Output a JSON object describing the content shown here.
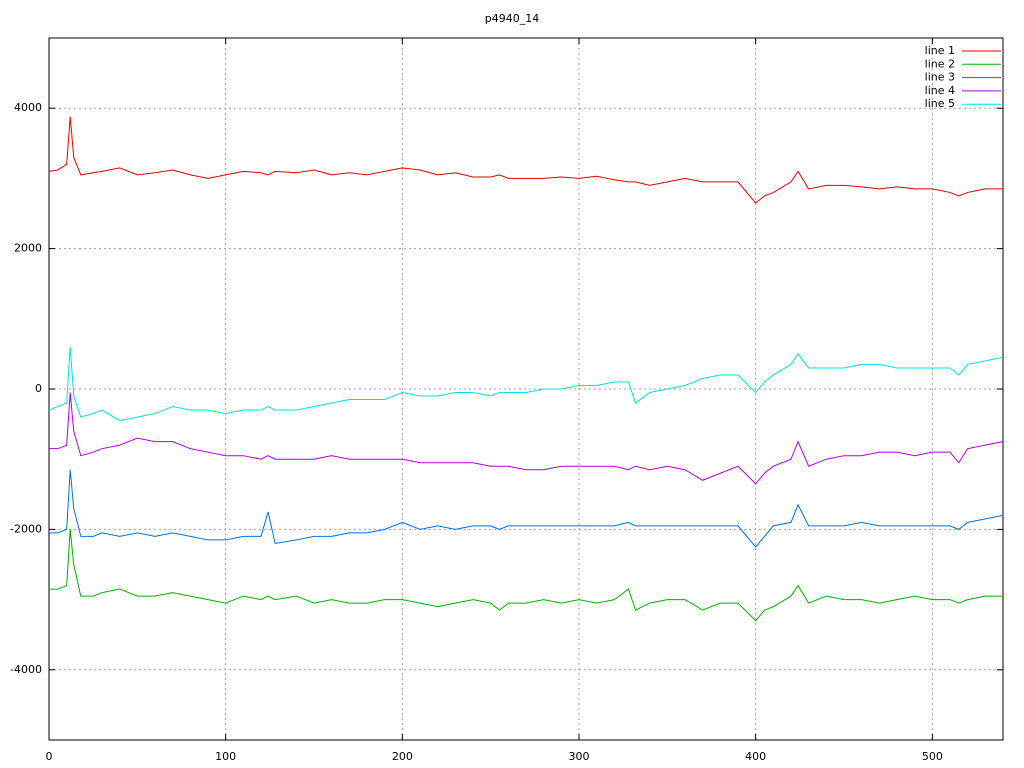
{
  "chart_data": {
    "type": "line",
    "title": "p4940_14",
    "x": [
      0,
      5,
      10,
      12,
      14,
      18,
      25,
      30,
      40,
      50,
      60,
      70,
      80,
      90,
      100,
      110,
      120,
      124,
      128,
      140,
      150,
      160,
      170,
      180,
      190,
      200,
      210,
      220,
      230,
      240,
      250,
      255,
      260,
      270,
      280,
      290,
      300,
      310,
      320,
      328,
      332,
      340,
      350,
      360,
      370,
      380,
      390,
      400,
      405,
      410,
      420,
      424,
      430,
      440,
      450,
      460,
      470,
      480,
      490,
      500,
      510,
      515,
      520,
      530,
      540
    ],
    "series": [
      {
        "name": "line 1",
        "color": "#e00000",
        "values": [
          3100,
          3120,
          3200,
          3880,
          3300,
          3050,
          3080,
          3100,
          3150,
          3050,
          3080,
          3120,
          3050,
          3000,
          3050,
          3100,
          3080,
          3050,
          3100,
          3080,
          3120,
          3050,
          3080,
          3050,
          3100,
          3150,
          3120,
          3050,
          3080,
          3020,
          3020,
          3050,
          3000,
          3000,
          3000,
          3020,
          3000,
          3030,
          2980,
          2950,
          2950,
          2900,
          2950,
          3000,
          2950,
          2950,
          2950,
          2650,
          2750,
          2800,
          2950,
          3100,
          2850,
          2900,
          2900,
          2880,
          2850,
          2880,
          2850,
          2850,
          2800,
          2750,
          2800,
          2850,
          2850
        ]
      },
      {
        "name": "line 2",
        "color": "#00b000",
        "values": [
          -2850,
          -2850,
          -2800,
          -2000,
          -2500,
          -2950,
          -2950,
          -2900,
          -2850,
          -2950,
          -2950,
          -2900,
          -2950,
          -3000,
          -3050,
          -2950,
          -3000,
          -2950,
          -3000,
          -2950,
          -3050,
          -3000,
          -3050,
          -3050,
          -3000,
          -3000,
          -3050,
          -3100,
          -3050,
          -3000,
          -3050,
          -3150,
          -3050,
          -3050,
          -3000,
          -3050,
          -3000,
          -3050,
          -3000,
          -2850,
          -3150,
          -3050,
          -3000,
          -3000,
          -3150,
          -3050,
          -3050,
          -3300,
          -3150,
          -3100,
          -2950,
          -2800,
          -3050,
          -2950,
          -3000,
          -3000,
          -3050,
          -3000,
          -2950,
          -3000,
          -3000,
          -3050,
          -3000,
          -2950,
          -2950
        ]
      },
      {
        "name": "line 3",
        "color": "#0070e0",
        "values": [
          -2050,
          -2050,
          -2000,
          -1150,
          -1700,
          -2100,
          -2100,
          -2050,
          -2100,
          -2050,
          -2100,
          -2050,
          -2100,
          -2150,
          -2150,
          -2100,
          -2100,
          -1750,
          -2200,
          -2150,
          -2100,
          -2100,
          -2050,
          -2050,
          -2000,
          -1900,
          -2000,
          -1950,
          -2000,
          -1950,
          -1950,
          -2000,
          -1950,
          -1950,
          -1950,
          -1950,
          -1950,
          -1950,
          -1950,
          -1900,
          -1950,
          -1950,
          -1950,
          -1950,
          -1950,
          -1950,
          -1950,
          -2250,
          -2100,
          -1950,
          -1900,
          -1650,
          -1950,
          -1950,
          -1950,
          -1900,
          -1950,
          -1950,
          -1950,
          -1950,
          -1950,
          -2000,
          -1900,
          -1850,
          -1800
        ]
      },
      {
        "name": "line 4",
        "color": "#b000e0",
        "values": [
          -850,
          -850,
          -800,
          -50,
          -600,
          -950,
          -900,
          -850,
          -800,
          -700,
          -750,
          -750,
          -850,
          -900,
          -950,
          -950,
          -1000,
          -950,
          -1000,
          -1000,
          -1000,
          -950,
          -1000,
          -1000,
          -1000,
          -1000,
          -1050,
          -1050,
          -1050,
          -1050,
          -1100,
          -1100,
          -1100,
          -1150,
          -1150,
          -1100,
          -1100,
          -1100,
          -1100,
          -1150,
          -1100,
          -1150,
          -1100,
          -1150,
          -1300,
          -1200,
          -1100,
          -1350,
          -1200,
          -1100,
          -1000,
          -750,
          -1100,
          -1000,
          -950,
          -950,
          -900,
          -900,
          -950,
          -900,
          -900,
          -1050,
          -850,
          -800,
          -750
        ]
      },
      {
        "name": "line 5",
        "color": "#00e0e0",
        "values": [
          -300,
          -250,
          -200,
          600,
          -100,
          -400,
          -350,
          -300,
          -450,
          -400,
          -350,
          -250,
          -300,
          -300,
          -350,
          -300,
          -300,
          -250,
          -300,
          -300,
          -250,
          -200,
          -150,
          -150,
          -150,
          -50,
          -100,
          -100,
          -50,
          -50,
          -100,
          -50,
          -50,
          -50,
          0,
          0,
          50,
          50,
          100,
          100,
          -200,
          -50,
          0,
          50,
          150,
          200,
          200,
          -50,
          100,
          200,
          350,
          500,
          300,
          300,
          300,
          350,
          350,
          300,
          300,
          300,
          300,
          200,
          350,
          400,
          450
        ]
      }
    ],
    "xlim": [
      0,
      540
    ],
    "xticks": [
      0,
      100,
      200,
      300,
      400,
      500
    ],
    "ylim": [
      -5000,
      5000
    ],
    "yticks": [
      -4000,
      -2000,
      0,
      2000,
      4000
    ],
    "grid": true,
    "legend_position": "top-right"
  }
}
